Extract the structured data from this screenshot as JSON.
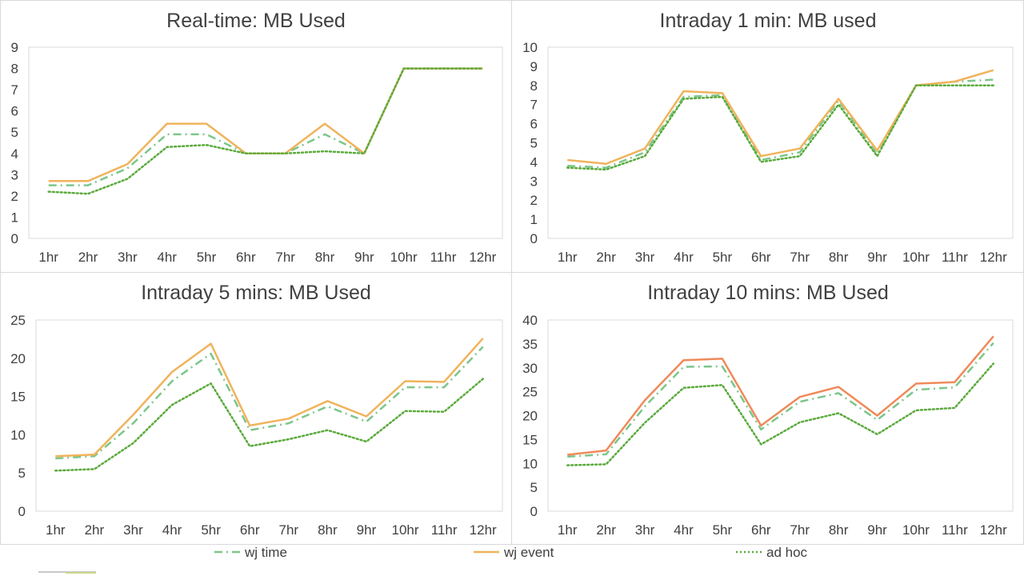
{
  "colors": {
    "wj_time": "#7cc68a",
    "wj_event": "#f0b35c",
    "wj_event_panel4": "#ef8a5a",
    "ad_hoc": "#5aaa3c"
  },
  "legend": [
    {
      "key": "wj_time",
      "label": "wj time",
      "style": "dash-dot"
    },
    {
      "key": "wj_event",
      "label": "wj event",
      "style": "solid"
    },
    {
      "key": "ad_hoc",
      "label": "ad hoc",
      "style": "dotted"
    }
  ],
  "chart_data": [
    {
      "type": "line",
      "title": "Real-time: MB Used",
      "categories": [
        "1hr",
        "2hr",
        "3hr",
        "4hr",
        "5hr",
        "6hr",
        "7hr",
        "8hr",
        "9hr",
        "10hr",
        "11hr",
        "12hr"
      ],
      "ylim": [
        0,
        9
      ],
      "yticks": [
        0,
        1,
        2,
        3,
        4,
        5,
        6,
        7,
        8,
        9
      ],
      "series": [
        {
          "name": "wj time",
          "values": [
            2.5,
            2.5,
            3.3,
            4.9,
            4.9,
            4.0,
            4.0,
            4.9,
            4.0,
            8.0,
            8.0,
            8.0
          ]
        },
        {
          "name": "wj event",
          "values": [
            2.7,
            2.7,
            3.5,
            5.4,
            5.4,
            4.0,
            4.0,
            5.4,
            4.0,
            8.0,
            8.0,
            8.0
          ]
        },
        {
          "name": "ad hoc",
          "values": [
            2.2,
            2.1,
            2.8,
            4.3,
            4.4,
            4.0,
            4.0,
            4.1,
            4.0,
            8.0,
            8.0,
            8.0
          ]
        }
      ]
    },
    {
      "type": "line",
      "title": "Intraday 1 min: MB used",
      "categories": [
        "1hr",
        "2hr",
        "3hr",
        "4hr",
        "5hr",
        "6hr",
        "7hr",
        "8hr",
        "9hr",
        "10hr",
        "11hr",
        "12hr"
      ],
      "ylim": [
        0,
        10
      ],
      "yticks": [
        0,
        1,
        2,
        3,
        4,
        5,
        6,
        7,
        8,
        9,
        10
      ],
      "series": [
        {
          "name": "wj time",
          "values": [
            3.8,
            3.7,
            4.5,
            7.4,
            7.5,
            4.1,
            4.5,
            7.2,
            4.4,
            8.0,
            8.2,
            8.3
          ]
        },
        {
          "name": "wj event",
          "values": [
            4.1,
            3.9,
            4.7,
            7.7,
            7.6,
            4.3,
            4.7,
            7.3,
            4.6,
            8.0,
            8.2,
            8.8
          ]
        },
        {
          "name": "ad hoc",
          "values": [
            3.7,
            3.6,
            4.3,
            7.3,
            7.4,
            4.0,
            4.3,
            7.0,
            4.3,
            8.0,
            8.0,
            8.0
          ]
        }
      ]
    },
    {
      "type": "line",
      "title": "Intraday 5 mins: MB Used",
      "categories": [
        "1hr",
        "2hr",
        "3hr",
        "4hr",
        "5hr",
        "6hr",
        "7hr",
        "8hr",
        "9hr",
        "10hr",
        "11hr",
        "12hr"
      ],
      "ylim": [
        0,
        25
      ],
      "yticks": [
        0,
        5,
        10,
        15,
        20,
        25
      ],
      "series": [
        {
          "name": "wj time",
          "values": [
            6.9,
            7.2,
            11.5,
            17.0,
            20.6,
            10.6,
            11.5,
            13.7,
            11.7,
            16.2,
            16.2,
            21.5
          ]
        },
        {
          "name": "wj event",
          "values": [
            7.2,
            7.4,
            12.6,
            18.2,
            21.9,
            11.2,
            12.1,
            14.4,
            12.4,
            17.0,
            16.9,
            22.6
          ]
        },
        {
          "name": "ad hoc",
          "values": [
            5.3,
            5.5,
            8.9,
            13.9,
            16.7,
            8.5,
            9.4,
            10.6,
            9.1,
            13.1,
            13.0,
            17.3
          ]
        }
      ]
    },
    {
      "type": "line",
      "title": "Intraday 10 mins: MB Used",
      "categories": [
        "1hr",
        "2hr",
        "3hr",
        "4hr",
        "5hr",
        "6hr",
        "7hr",
        "8hr",
        "9hr",
        "10hr",
        "11hr",
        "12hr"
      ],
      "ylim": [
        0,
        40
      ],
      "yticks": [
        0,
        5,
        10,
        15,
        20,
        25,
        30,
        35,
        40
      ],
      "series": [
        {
          "name": "wj time",
          "values": [
            11.4,
            11.9,
            21.9,
            30.2,
            30.3,
            17.1,
            22.9,
            24.7,
            19.1,
            25.4,
            25.9,
            35.2
          ]
        },
        {
          "name": "wj event",
          "values": [
            11.8,
            12.7,
            23.2,
            31.6,
            31.9,
            17.9,
            23.9,
            26.0,
            20.0,
            26.7,
            27.0,
            36.6
          ]
        },
        {
          "name": "ad hoc",
          "values": [
            9.6,
            9.8,
            18.5,
            25.8,
            26.4,
            14.0,
            18.6,
            20.5,
            16.1,
            21.1,
            21.6,
            30.9
          ]
        }
      ]
    }
  ]
}
